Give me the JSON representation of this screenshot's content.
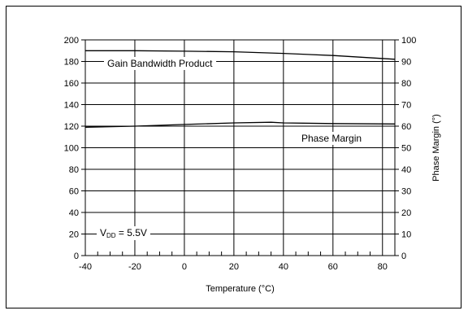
{
  "chart_data": {
    "type": "line",
    "title": "",
    "xlabel": "Temperature (°C)",
    "ylabel_left": "",
    "ylabel_right": "Phase Margin (°)",
    "x_ticks": [
      "-40",
      "-20",
      "0",
      "20",
      "40",
      "60",
      "80"
    ],
    "y_left_ticks": [
      "0",
      "20",
      "40",
      "60",
      "80",
      "100",
      "120",
      "140",
      "160",
      "180",
      "200"
    ],
    "y_right_ticks": [
      "0",
      "10",
      "20",
      "30",
      "40",
      "50",
      "60",
      "70",
      "80",
      "90",
      "100"
    ],
    "xlim": [
      -40,
      85
    ],
    "ylim_left": [
      0,
      200
    ],
    "ylim_right": [
      0,
      100
    ],
    "grid": true,
    "series": [
      {
        "name": "Gain Bandwidth Product",
        "axis": "left",
        "x": [
          -40,
          -20,
          0,
          20,
          40,
          60,
          85
        ],
        "y": [
          190,
          190,
          189.5,
          189,
          187.5,
          185.5,
          182
        ]
      },
      {
        "name": "Phase Margin",
        "axis": "right",
        "x": [
          -40,
          -20,
          0,
          20,
          35,
          40,
          60,
          85
        ],
        "y": [
          59.5,
          60,
          60.8,
          61.5,
          61.8,
          61.5,
          61.2,
          61
        ]
      }
    ],
    "annotations": {
      "gbwp_label": "Gain Bandwidth Product",
      "pm_label": "Phase Margin",
      "vdd_main": "V",
      "vdd_sub": "DD",
      "vdd_value": " = 5.5V"
    }
  }
}
